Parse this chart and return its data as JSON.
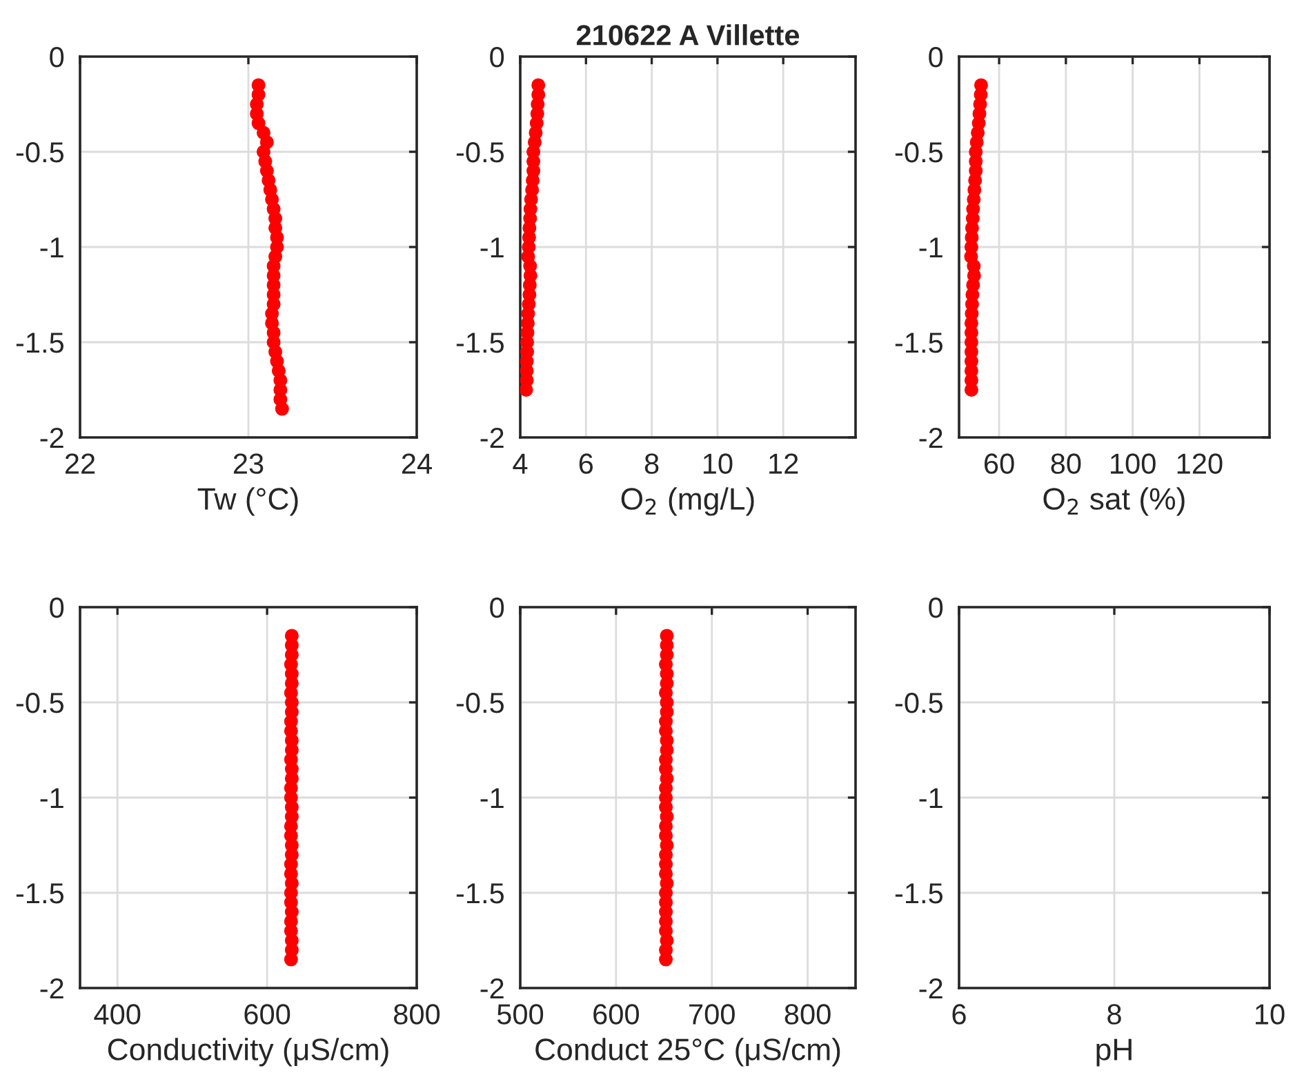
{
  "chart_data": [
    {
      "type": "scatter",
      "xlabel": "Tw (°C)",
      "xlim": [
        22,
        24
      ],
      "xticks": [
        22,
        23,
        24
      ],
      "ylim": [
        -2,
        0
      ],
      "yticks": [
        -2,
        -1.5,
        -1,
        -0.5,
        0
      ],
      "grid": true,
      "marker": "circle",
      "series": [
        {
          "color": "#ff0000",
          "x": [
            23.06,
            23.06,
            23.05,
            23.05,
            23.06,
            23.09,
            23.11,
            23.09,
            23.1,
            23.11,
            23.12,
            23.13,
            23.14,
            23.15,
            23.16,
            23.16,
            23.17,
            23.17,
            23.16,
            23.15,
            23.15,
            23.15,
            23.15,
            23.15,
            23.14,
            23.14,
            23.15,
            23.15,
            23.16,
            23.17,
            23.18,
            23.19,
            23.19,
            23.19,
            23.2
          ],
          "values": [
            -0.15,
            -0.2,
            -0.25,
            -0.3,
            -0.35,
            -0.4,
            -0.45,
            -0.5,
            -0.55,
            -0.6,
            -0.65,
            -0.7,
            -0.75,
            -0.8,
            -0.85,
            -0.9,
            -0.95,
            -1.0,
            -1.05,
            -1.1,
            -1.15,
            -1.2,
            -1.25,
            -1.3,
            -1.35,
            -1.4,
            -1.45,
            -1.5,
            -1.55,
            -1.6,
            -1.65,
            -1.7,
            -1.75,
            -1.8,
            -1.85
          ]
        }
      ]
    },
    {
      "type": "scatter",
      "title": "210622 A Villette",
      "xlabel": "O$_{2}$ (mg/L)",
      "xlim": [
        4,
        14.2
      ],
      "xticks": [
        4,
        6,
        8,
        10,
        12
      ],
      "ylim": [
        -2,
        0
      ],
      "yticks": [
        -2,
        -1.5,
        -1,
        -0.5,
        0
      ],
      "grid": true,
      "marker": "circle",
      "series": [
        {
          "color": "#ff0000",
          "x": [
            4.55,
            4.55,
            4.53,
            4.52,
            4.5,
            4.47,
            4.44,
            4.4,
            4.4,
            4.4,
            4.38,
            4.36,
            4.33,
            4.31,
            4.3,
            4.28,
            4.27,
            4.26,
            4.24,
            4.3,
            4.31,
            4.29,
            4.28,
            4.26,
            4.24,
            4.23,
            4.22,
            4.21,
            4.21,
            4.2,
            4.2,
            4.2,
            4.18
          ],
          "values": [
            -0.15,
            -0.2,
            -0.25,
            -0.3,
            -0.35,
            -0.4,
            -0.45,
            -0.5,
            -0.55,
            -0.6,
            -0.65,
            -0.7,
            -0.75,
            -0.8,
            -0.85,
            -0.9,
            -0.95,
            -1.0,
            -1.05,
            -1.1,
            -1.15,
            -1.2,
            -1.25,
            -1.3,
            -1.35,
            -1.4,
            -1.45,
            -1.5,
            -1.55,
            -1.6,
            -1.65,
            -1.7,
            -1.75
          ]
        }
      ]
    },
    {
      "type": "scatter",
      "xlabel": "O$_{2}$ sat (%)",
      "xlim": [
        48,
        141
      ],
      "xticks": [
        60,
        80,
        100,
        120
      ],
      "ylim": [
        -2,
        0
      ],
      "yticks": [
        -2,
        -1.5,
        -1,
        -0.5,
        0
      ],
      "grid": true,
      "marker": "circle",
      "series": [
        {
          "color": "#ff0000",
          "x": [
            54.6,
            54.5,
            54.3,
            54.1,
            53.9,
            53.6,
            53.3,
            53.0,
            53.0,
            53.0,
            52.8,
            52.6,
            52.4,
            52.2,
            52.1,
            51.9,
            51.8,
            51.7,
            51.6,
            52.4,
            52.5,
            52.2,
            52.0,
            51.9,
            51.8,
            51.7,
            51.7,
            51.7,
            51.7,
            51.7,
            51.7,
            51.7,
            51.7
          ],
          "values": [
            -0.15,
            -0.2,
            -0.25,
            -0.3,
            -0.35,
            -0.4,
            -0.45,
            -0.5,
            -0.55,
            -0.6,
            -0.65,
            -0.7,
            -0.75,
            -0.8,
            -0.85,
            -0.9,
            -0.95,
            -1.0,
            -1.05,
            -1.1,
            -1.15,
            -1.2,
            -1.25,
            -1.3,
            -1.35,
            -1.4,
            -1.45,
            -1.5,
            -1.55,
            -1.6,
            -1.65,
            -1.7,
            -1.75
          ]
        }
      ]
    },
    {
      "type": "scatter",
      "xlabel": "Conductivity (μS/cm)",
      "xlim": [
        350,
        800
      ],
      "xticks": [
        400,
        600,
        800
      ],
      "ylim": [
        -2,
        0
      ],
      "yticks": [
        -2,
        -1.5,
        -1,
        -0.5,
        0
      ],
      "grid": true,
      "marker": "circle",
      "series": [
        {
          "color": "#ff0000",
          "x": [
            633,
            633,
            633,
            632,
            633,
            633,
            632,
            633,
            633,
            632,
            632,
            633,
            633,
            632,
            633,
            633,
            632,
            632,
            633,
            633,
            632,
            632,
            633,
            633,
            632,
            632,
            633,
            632,
            632,
            633,
            632,
            632,
            633,
            633,
            632
          ],
          "values": [
            -0.15,
            -0.2,
            -0.25,
            -0.3,
            -0.35,
            -0.4,
            -0.45,
            -0.5,
            -0.55,
            -0.6,
            -0.65,
            -0.7,
            -0.75,
            -0.8,
            -0.85,
            -0.9,
            -0.95,
            -1.0,
            -1.05,
            -1.1,
            -1.15,
            -1.2,
            -1.25,
            -1.3,
            -1.35,
            -1.4,
            -1.45,
            -1.5,
            -1.55,
            -1.6,
            -1.65,
            -1.7,
            -1.75,
            -1.8,
            -1.85
          ]
        }
      ]
    },
    {
      "type": "scatter",
      "xlabel": "Conduct 25°C (μS/cm)",
      "xlim": [
        500,
        850
      ],
      "xticks": [
        500,
        600,
        700,
        800
      ],
      "ylim": [
        -2,
        0
      ],
      "yticks": [
        -2,
        -1.5,
        -1,
        -0.5,
        0
      ],
      "grid": true,
      "marker": "circle",
      "series": [
        {
          "color": "#ff0000",
          "x": [
            653,
            653,
            653,
            652,
            653,
            653,
            652,
            653,
            653,
            652,
            652,
            653,
            653,
            652,
            652,
            653,
            652,
            652,
            652,
            653,
            652,
            652,
            653,
            652,
            652,
            652,
            653,
            652,
            652,
            652,
            652,
            652,
            653,
            652,
            652
          ],
          "values": [
            -0.15,
            -0.2,
            -0.25,
            -0.3,
            -0.35,
            -0.4,
            -0.45,
            -0.5,
            -0.55,
            -0.6,
            -0.65,
            -0.7,
            -0.75,
            -0.8,
            -0.85,
            -0.9,
            -0.95,
            -1.0,
            -1.05,
            -1.1,
            -1.15,
            -1.2,
            -1.25,
            -1.3,
            -1.35,
            -1.4,
            -1.45,
            -1.5,
            -1.55,
            -1.6,
            -1.65,
            -1.7,
            -1.75,
            -1.8,
            -1.85
          ]
        }
      ]
    },
    {
      "type": "scatter",
      "xlabel": "pH",
      "xlim": [
        6,
        10
      ],
      "xticks": [
        6,
        8,
        10
      ],
      "ylim": [
        -2,
        0
      ],
      "yticks": [
        -2,
        -1.5,
        -1,
        -0.5,
        0
      ],
      "grid": true
    }
  ]
}
